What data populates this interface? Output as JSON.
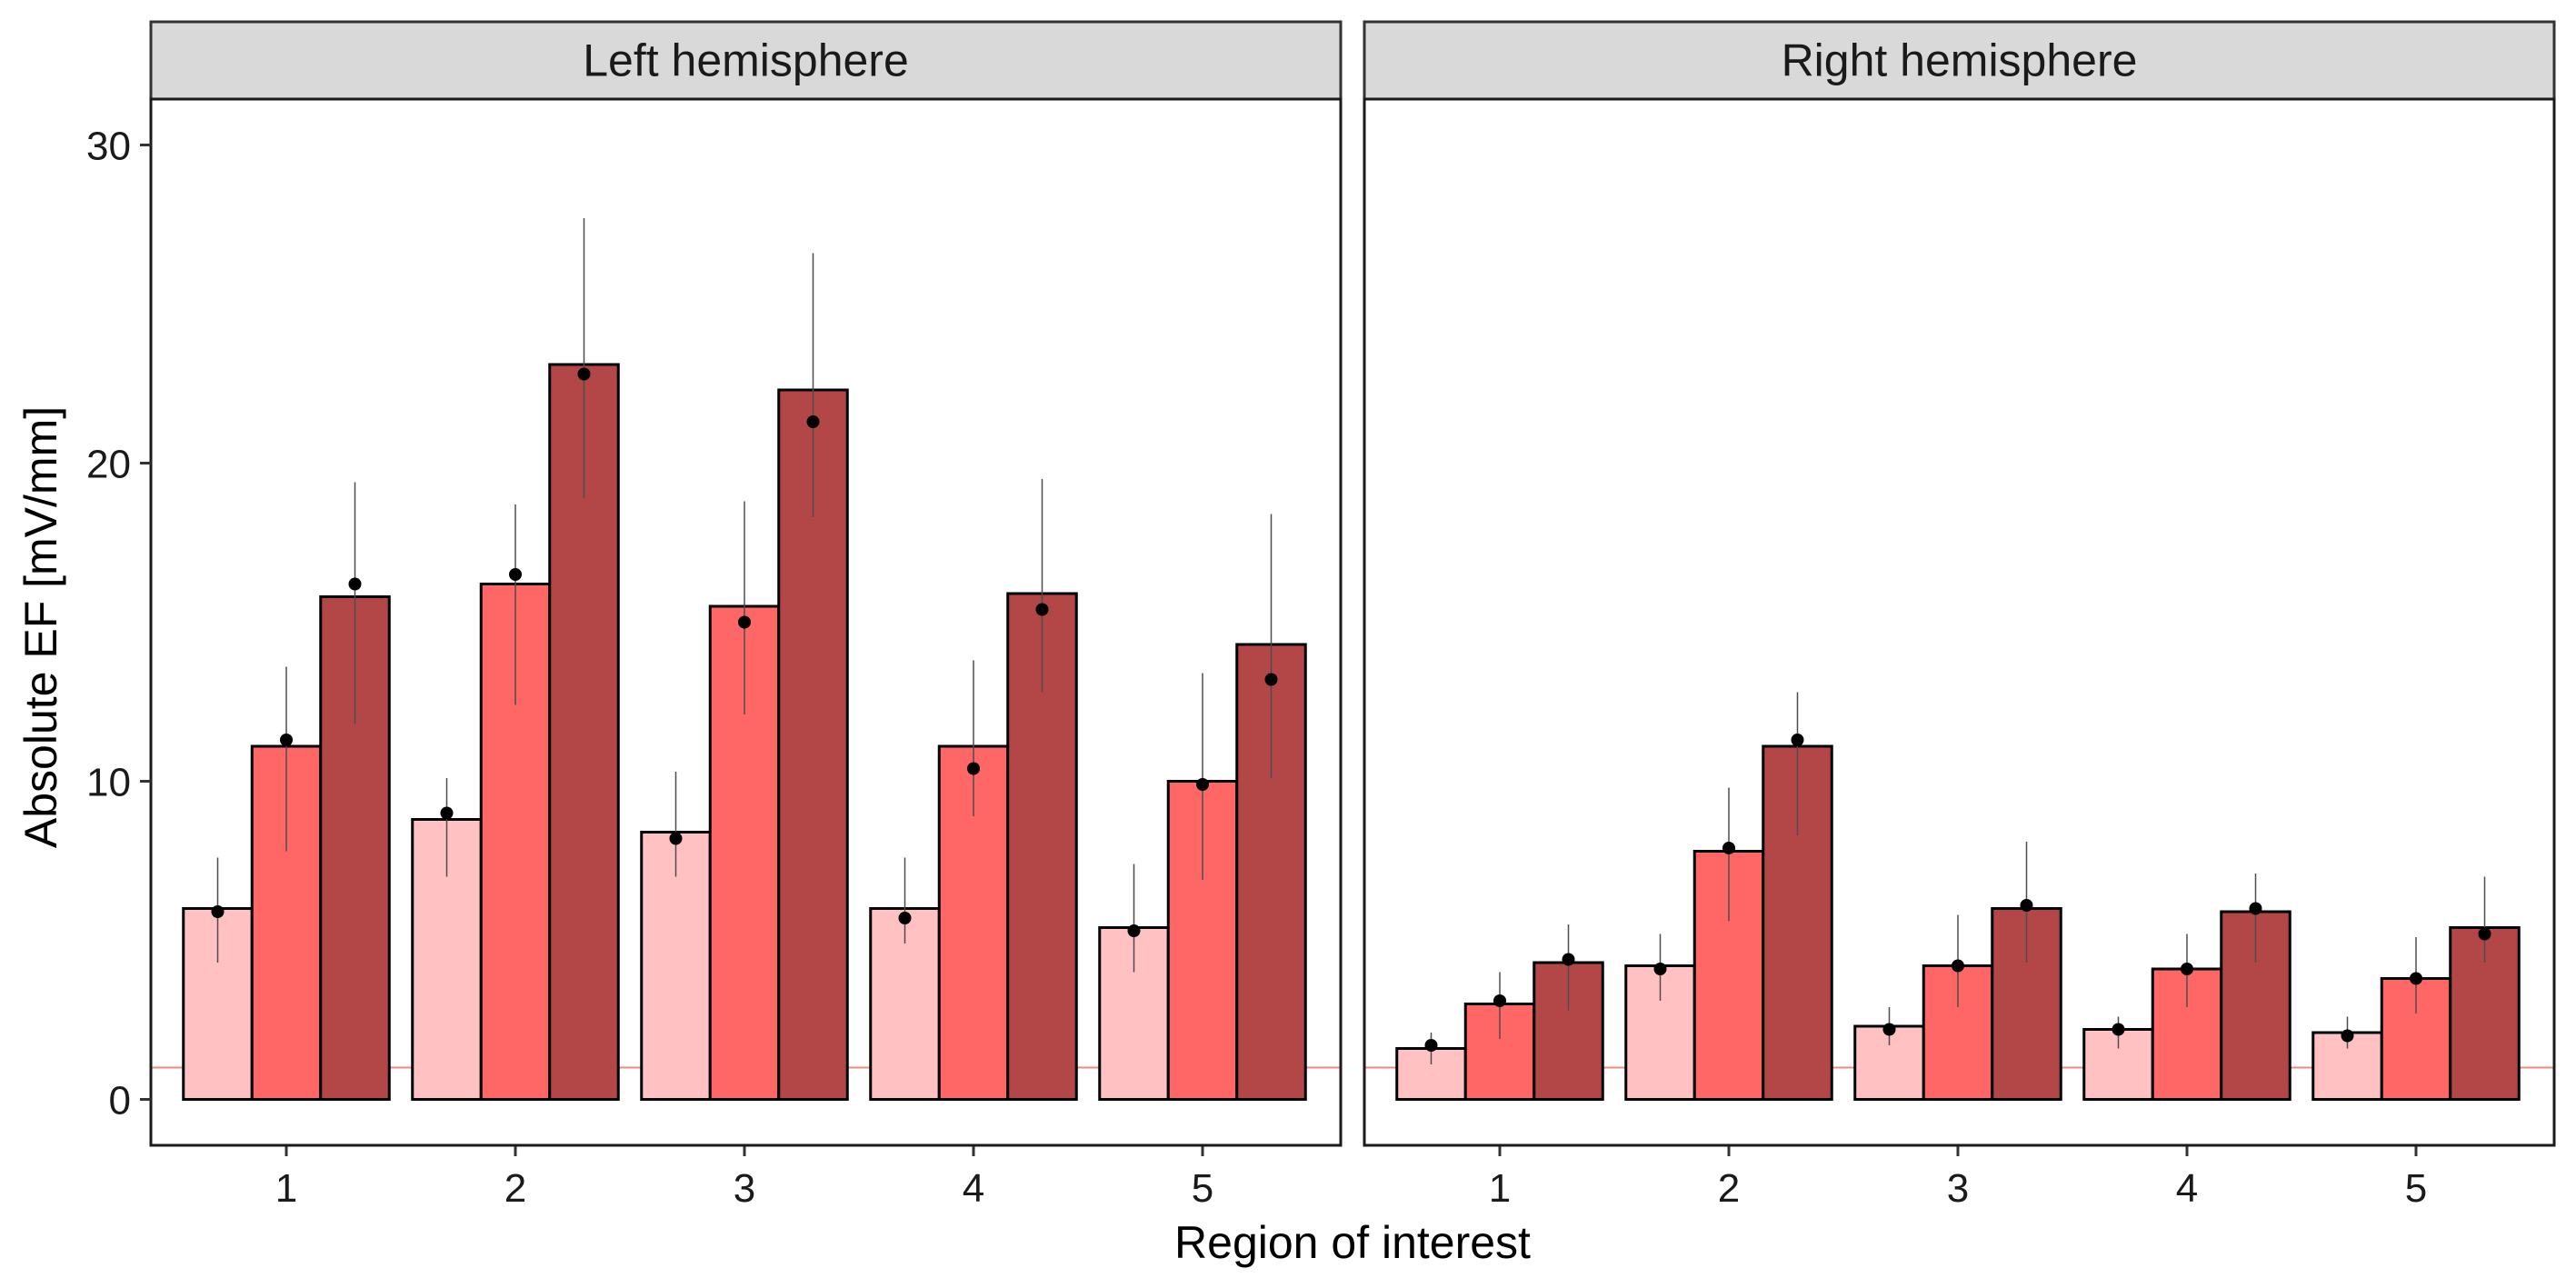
{
  "chart_data": {
    "type": "bar",
    "xlabel": "Region of interest",
    "ylabel": "Absolute EF [mV/mm]",
    "ylim": [
      0,
      31.5
    ],
    "y_ticks": [
      "0",
      "10",
      "20",
      "30"
    ],
    "categories": [
      "1",
      "2",
      "3",
      "4",
      "5"
    ],
    "reference_line": {
      "y": 1,
      "color": "#ef8a7c"
    },
    "grid": false,
    "legend": "none",
    "series_colors": [
      "#ffc1c1",
      "#ff6666",
      "#b34747"
    ],
    "panels": [
      {
        "title": "Left hemisphere",
        "series": [
          {
            "values": [
              6.0,
              8.8,
              8.4,
              6.0,
              5.4
            ],
            "points": [
              5.9,
              9.0,
              8.2,
              5.7,
              5.3
            ],
            "err_low": [
              4.3,
              7.0,
              7.0,
              4.9,
              4.0
            ],
            "err_high": [
              7.6,
              10.1,
              10.3,
              7.6,
              7.4
            ]
          },
          {
            "values": [
              11.1,
              16.2,
              15.5,
              11.1,
              10.0
            ],
            "points": [
              11.3,
              16.5,
              15.0,
              10.4,
              9.9
            ],
            "err_low": [
              7.8,
              12.4,
              12.1,
              8.9,
              6.9
            ],
            "err_high": [
              13.6,
              18.7,
              18.8,
              13.8,
              13.4
            ]
          },
          {
            "values": [
              15.8,
              23.1,
              22.3,
              15.9,
              14.3
            ],
            "points": [
              16.2,
              22.8,
              21.3,
              15.4,
              13.2
            ],
            "err_low": [
              11.8,
              18.9,
              18.3,
              12.8,
              10.1
            ],
            "err_high": [
              19.4,
              27.7,
              26.6,
              19.5,
              18.4
            ]
          }
        ]
      },
      {
        "title": "Right hemisphere",
        "series": [
          {
            "values": [
              1.6,
              4.2,
              2.3,
              2.2,
              2.1
            ],
            "points": [
              1.7,
              4.1,
              2.2,
              2.2,
              2.0
            ],
            "err_low": [
              1.1,
              3.1,
              1.7,
              1.6,
              1.6
            ],
            "err_high": [
              2.1,
              5.2,
              2.9,
              2.6,
              2.6
            ]
          },
          {
            "values": [
              3.0,
              7.8,
              4.2,
              4.1,
              3.8
            ],
            "points": [
              3.1,
              7.9,
              4.2,
              4.1,
              3.8
            ],
            "err_low": [
              1.9,
              5.6,
              2.9,
              2.9,
              2.7
            ],
            "err_high": [
              4.0,
              9.8,
              5.8,
              5.2,
              5.1
            ]
          },
          {
            "values": [
              4.3,
              11.1,
              6.0,
              5.9,
              5.4
            ],
            "points": [
              4.4,
              11.3,
              6.1,
              6.0,
              5.2
            ],
            "err_low": [
              2.8,
              8.3,
              4.3,
              4.3,
              4.3
            ],
            "err_high": [
              5.5,
              12.8,
              8.1,
              7.1,
              7.0
            ]
          }
        ]
      }
    ]
  }
}
